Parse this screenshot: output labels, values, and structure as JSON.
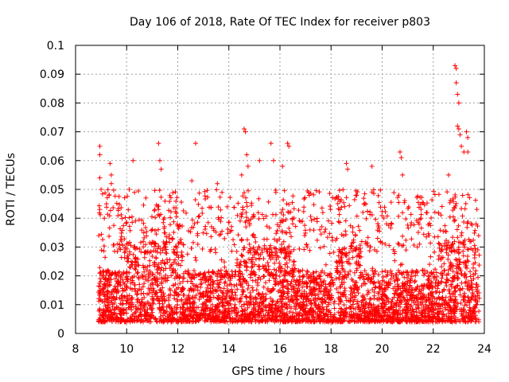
{
  "chart_data": {
    "type": "scatter",
    "title": "Day 106 of 2018, Rate Of TEC Index for receiver p803",
    "xlabel": "GPS time / hours",
    "ylabel": "ROTI / TECUs",
    "xlim": [
      8,
      24
    ],
    "ylim": [
      0,
      0.1
    ],
    "x_ticks": [
      "8",
      "10",
      "12",
      "14",
      "16",
      "18",
      "20",
      "22",
      "24"
    ],
    "y_ticks": [
      "0",
      "0.01",
      "0.02",
      "0.03",
      "0.04",
      "0.05",
      "0.06",
      "0.07",
      "0.08",
      "0.09",
      "0.1"
    ],
    "grid": true,
    "marker": "+",
    "series": [
      {
        "name": "ROTI p803",
        "color": "#ff0000",
        "x_start": 8.9,
        "x_end": 23.8,
        "baseline_min": 0.004,
        "baseline_max": 0.035,
        "highlights": [
          {
            "x": 8.95,
            "y": 0.065
          },
          {
            "x": 8.95,
            "y": 0.062
          },
          {
            "x": 8.95,
            "y": 0.054
          },
          {
            "x": 9.0,
            "y": 0.05
          },
          {
            "x": 9.35,
            "y": 0.059
          },
          {
            "x": 9.4,
            "y": 0.055
          },
          {
            "x": 9.4,
            "y": 0.052
          },
          {
            "x": 10.1,
            "y": 0.05
          },
          {
            "x": 10.25,
            "y": 0.06
          },
          {
            "x": 11.25,
            "y": 0.066
          },
          {
            "x": 11.3,
            "y": 0.06
          },
          {
            "x": 11.35,
            "y": 0.057
          },
          {
            "x": 12.55,
            "y": 0.053
          },
          {
            "x": 12.7,
            "y": 0.066
          },
          {
            "x": 13.55,
            "y": 0.052
          },
          {
            "x": 14.5,
            "y": 0.055
          },
          {
            "x": 14.6,
            "y": 0.071
          },
          {
            "x": 14.65,
            "y": 0.07
          },
          {
            "x": 14.7,
            "y": 0.062
          },
          {
            "x": 14.75,
            "y": 0.058
          },
          {
            "x": 15.2,
            "y": 0.06
          },
          {
            "x": 15.65,
            "y": 0.066
          },
          {
            "x": 15.75,
            "y": 0.06
          },
          {
            "x": 16.1,
            "y": 0.058
          },
          {
            "x": 16.3,
            "y": 0.066
          },
          {
            "x": 16.35,
            "y": 0.065
          },
          {
            "x": 18.6,
            "y": 0.059
          },
          {
            "x": 18.65,
            "y": 0.057
          },
          {
            "x": 19.6,
            "y": 0.058
          },
          {
            "x": 20.7,
            "y": 0.063
          },
          {
            "x": 20.75,
            "y": 0.061
          },
          {
            "x": 20.8,
            "y": 0.055
          },
          {
            "x": 22.6,
            "y": 0.055
          },
          {
            "x": 22.85,
            "y": 0.093
          },
          {
            "x": 22.9,
            "y": 0.092
          },
          {
            "x": 22.9,
            "y": 0.087
          },
          {
            "x": 22.95,
            "y": 0.083
          },
          {
            "x": 23.0,
            "y": 0.08
          },
          {
            "x": 22.95,
            "y": 0.072
          },
          {
            "x": 23.0,
            "y": 0.071
          },
          {
            "x": 23.05,
            "y": 0.069
          },
          {
            "x": 23.3,
            "y": 0.07
          },
          {
            "x": 23.35,
            "y": 0.068
          },
          {
            "x": 23.35,
            "y": 0.063
          },
          {
            "x": 23.2,
            "y": 0.063
          },
          {
            "x": 23.1,
            "y": 0.065
          }
        ]
      }
    ]
  }
}
